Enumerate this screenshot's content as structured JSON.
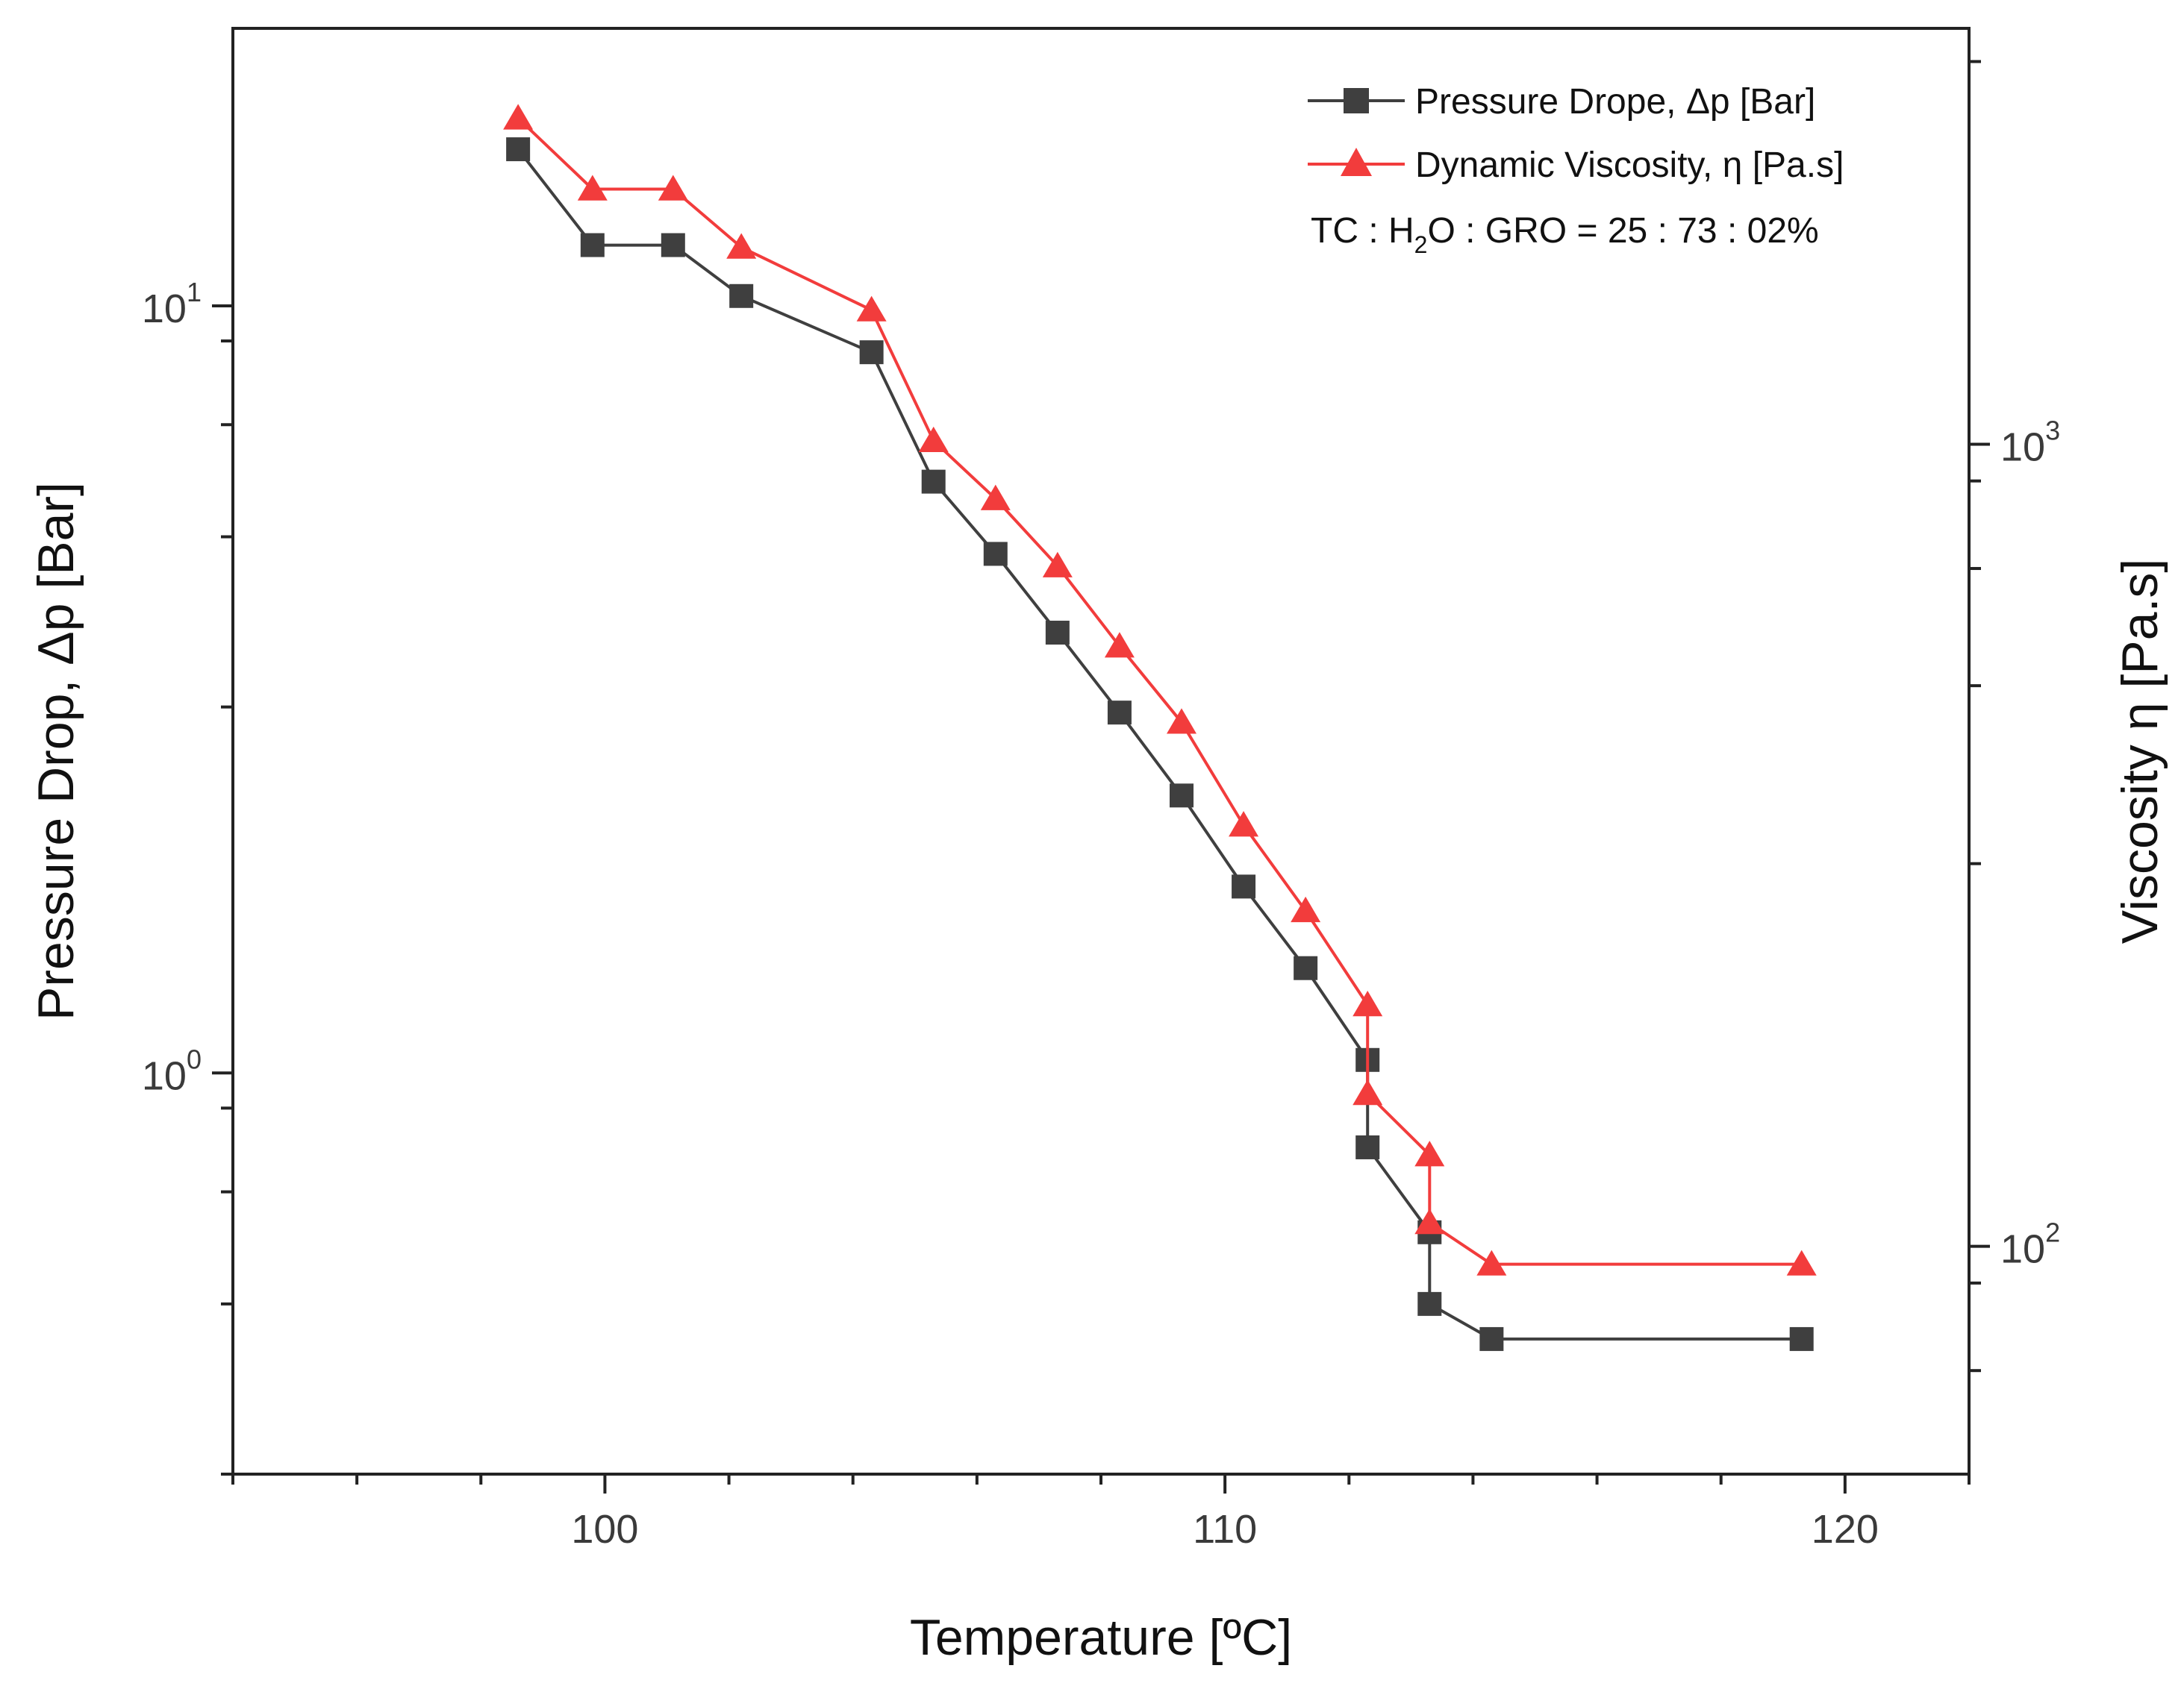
{
  "chart_data": {
    "type": "line",
    "title": "",
    "xlabel": "Temperature [ºC]",
    "ylabel_left": "Pressure Drop, Δp [Bar]",
    "ylabel_right": "Viscosity η [Pa.s]",
    "xlim": [
      94,
      122
    ],
    "xticks": [
      100,
      110,
      120
    ],
    "x_tick_labels": [
      "100",
      "110",
      "120"
    ],
    "y_left": {
      "scale": "log",
      "lim": [
        0.3,
        23
      ],
      "major_ticks": [
        1,
        10
      ],
      "major_tick_labels": [
        {
          "base": "10",
          "exp": "0"
        },
        {
          "base": "10",
          "exp": "1"
        }
      ]
    },
    "y_right": {
      "scale": "log",
      "lim": [
        52,
        3300
      ],
      "major_ticks": [
        100,
        1000
      ],
      "major_tick_labels": [
        {
          "base": "10",
          "exp": "2"
        },
        {
          "base": "10",
          "exp": "3"
        }
      ]
    },
    "series": [
      {
        "name": "Pressure Drope, Δp [Bar]",
        "axis": "left",
        "color": "#3f3f3f",
        "marker": "square",
        "x": [
          98.6,
          99.8,
          101.1,
          102.2,
          104.3,
          105.3,
          106.3,
          107.3,
          108.3,
          109.3,
          110.3,
          111.3,
          112.3,
          112.3,
          113.3,
          113.3,
          114.3,
          119.3
        ],
        "y": [
          16.0,
          12.0,
          12.0,
          10.3,
          8.7,
          5.9,
          4.75,
          3.75,
          2.95,
          2.3,
          1.75,
          1.37,
          1.04,
          0.8,
          0.62,
          0.5,
          0.45,
          0.45
        ]
      },
      {
        "name": "Dynamic Viscosity, η  [Pa.s]",
        "axis": "right",
        "color": "#f23c3c",
        "marker": "triangle",
        "x": [
          98.6,
          99.8,
          101.1,
          102.2,
          104.3,
          105.3,
          106.3,
          107.3,
          108.3,
          109.3,
          110.3,
          111.3,
          112.3,
          112.3,
          113.3,
          113.3,
          114.3,
          119.3
        ],
        "y": [
          2550,
          2080,
          2080,
          1760,
          1470,
          1010,
          855,
          705,
          560,
          450,
          335,
          262,
          200,
          155,
          130,
          107,
          95,
          95
        ]
      }
    ],
    "annotation": {
      "prefix": "TC : H",
      "subscript": "2",
      "suffix": "O : GRO = 25 : 73 : 02%"
    },
    "legend_position": "top-right"
  }
}
